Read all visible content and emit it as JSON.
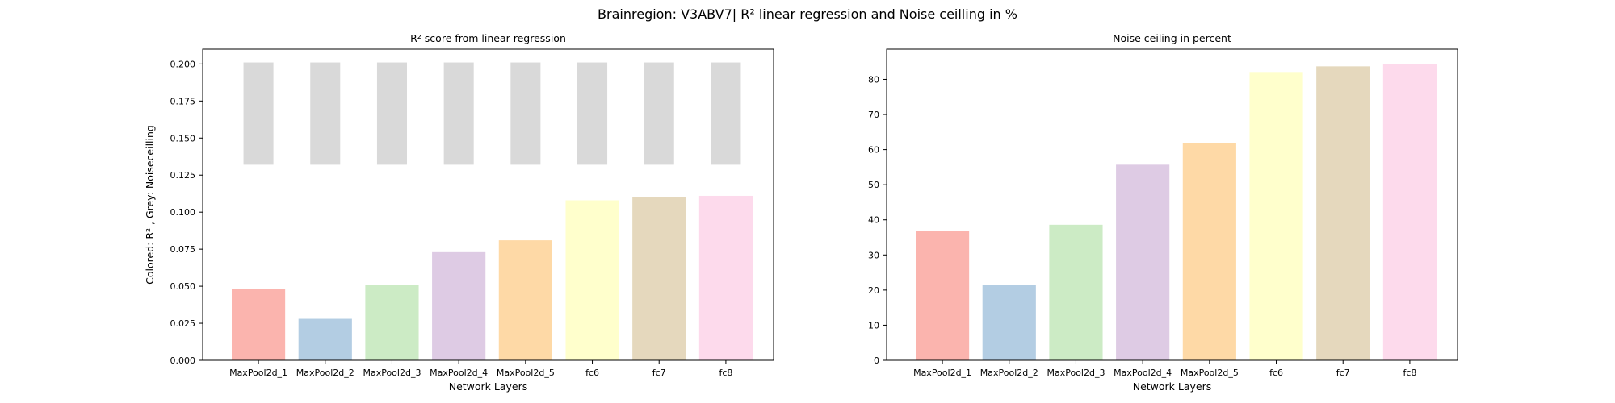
{
  "figure": {
    "suptitle": "Brainregion: V3ABV7| R² linear regression and Noise ceilling in %"
  },
  "chart_data": [
    {
      "type": "bar",
      "title": "R² score from linear regression",
      "xlabel": "Network Layers",
      "ylabel": "Colored: R² , Grey: Noiseceilling",
      "categories": [
        "MaxPool2d_1",
        "MaxPool2d_2",
        "MaxPool2d_3",
        "MaxPool2d_4",
        "MaxPool2d_5",
        "fc6",
        "fc7",
        "fc8"
      ],
      "series": [
        {
          "values": [
            0.048,
            0.028,
            0.051,
            0.073,
            0.081,
            0.108,
            0.11,
            0.111
          ]
        }
      ],
      "noise_ceiling_band": {
        "bottom": 0.132,
        "top": 0.201,
        "color": "#d9d9d9"
      },
      "ylim": [
        0,
        0.21
      ],
      "yticks": [
        "0.000",
        "0.025",
        "0.050",
        "0.075",
        "0.100",
        "0.125",
        "0.150",
        "0.175",
        "0.200"
      ],
      "colors": [
        "#fbb4ae",
        "#b3cde3",
        "#ccebc5",
        "#decbe4",
        "#fed9a6",
        "#ffffcc",
        "#e5d8bd",
        "#fddaec"
      ]
    },
    {
      "type": "bar",
      "title": "Noise ceiling in percent",
      "xlabel": "Network Layers",
      "ylabel": "",
      "categories": [
        "MaxPool2d_1",
        "MaxPool2d_2",
        "MaxPool2d_3",
        "MaxPool2d_4",
        "MaxPool2d_5",
        "fc6",
        "fc7",
        "fc8"
      ],
      "series": [
        {
          "values": [
            36.8,
            21.5,
            38.6,
            55.7,
            61.9,
            82.1,
            83.7,
            84.4
          ]
        }
      ],
      "ylim": [
        0,
        88.6
      ],
      "yticks": [
        "0",
        "10",
        "20",
        "30",
        "40",
        "50",
        "60",
        "70",
        "80"
      ],
      "colors": [
        "#fbb4ae",
        "#b3cde3",
        "#ccebc5",
        "#decbe4",
        "#fed9a6",
        "#ffffcc",
        "#e5d8bd",
        "#fddaec"
      ]
    }
  ]
}
